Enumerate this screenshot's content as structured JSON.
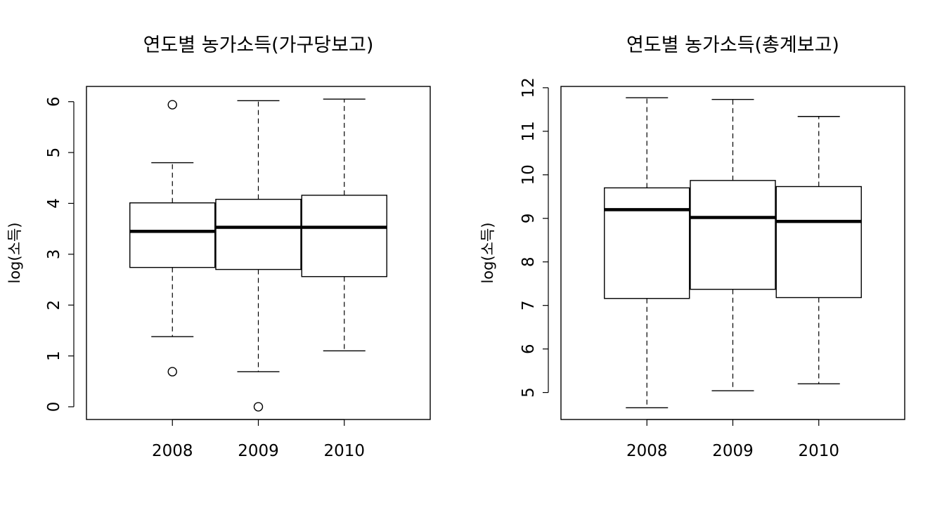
{
  "chart_data": [
    {
      "type": "boxplot",
      "title": "연도별 농가소득(가구당보고)",
      "ylabel": "log(소득)",
      "xlabel": "",
      "categories": [
        "2008",
        "2009",
        "2010"
      ],
      "ylim": [
        -0.25,
        6.3
      ],
      "yticks": [
        0,
        1,
        2,
        3,
        4,
        5,
        6
      ],
      "grid": false,
      "boxes": [
        {
          "category": "2008",
          "whisker_low": 1.38,
          "q1": 2.74,
          "median": 3.45,
          "q3": 4.01,
          "whisker_high": 4.8,
          "outliers": [
            0.69,
            5.94
          ]
        },
        {
          "category": "2009",
          "whisker_low": 0.69,
          "q1": 2.7,
          "median": 3.53,
          "q3": 4.08,
          "whisker_high": 6.02,
          "outliers": [
            0.0
          ]
        },
        {
          "category": "2010",
          "whisker_low": 1.1,
          "q1": 2.56,
          "median": 3.53,
          "q3": 4.16,
          "whisker_high": 6.05,
          "outliers": []
        }
      ]
    },
    {
      "type": "boxplot",
      "title": "연도별 농가소득(총계보고)",
      "ylabel": "log(소득)",
      "xlabel": "",
      "categories": [
        "2008",
        "2009",
        "2010"
      ],
      "ylim": [
        4.38,
        12.03
      ],
      "yticks": [
        5,
        6,
        7,
        8,
        9,
        10,
        11,
        12
      ],
      "grid": false,
      "boxes": [
        {
          "category": "2008",
          "whisker_low": 4.65,
          "q1": 7.16,
          "median": 9.2,
          "q3": 9.7,
          "whisker_high": 11.77,
          "outliers": []
        },
        {
          "category": "2009",
          "whisker_low": 5.04,
          "q1": 7.37,
          "median": 9.02,
          "q3": 9.87,
          "whisker_high": 11.73,
          "outliers": []
        },
        {
          "category": "2010",
          "whisker_low": 5.2,
          "q1": 7.18,
          "median": 8.93,
          "q3": 9.73,
          "whisker_high": 11.34,
          "outliers": []
        }
      ]
    }
  ]
}
